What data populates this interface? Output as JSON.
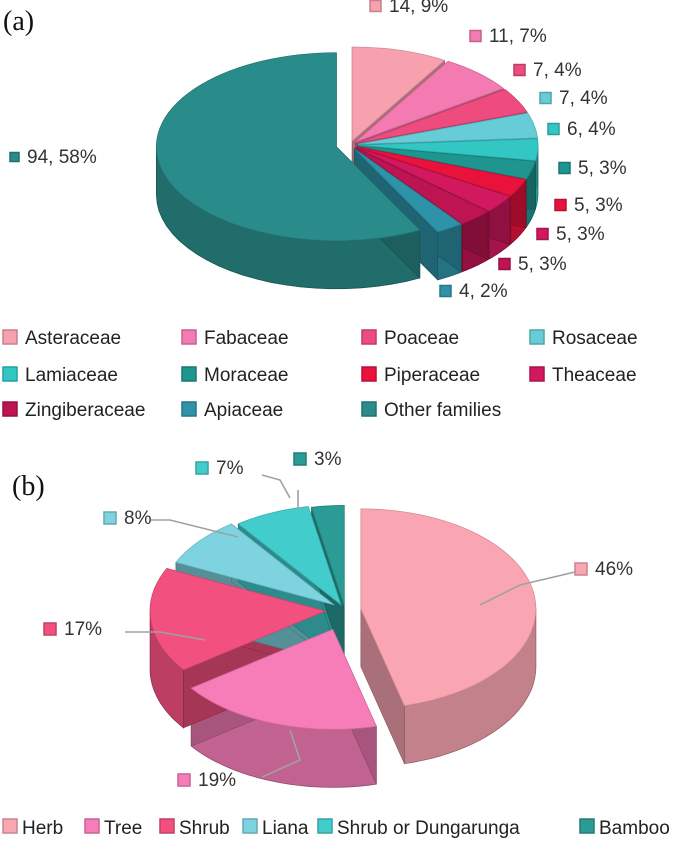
{
  "panel_a_label": "(a)",
  "panel_b_label": "(b)",
  "chart_data": [
    {
      "type": "pie",
      "panel": "(a)",
      "categories": [
        "Asteraceae",
        "Fabaceae",
        "Poaceae",
        "Rosaceae",
        "Lamiaceae",
        "Moraceae",
        "Piperaceae",
        "Theaceae",
        "Zingiberaceae",
        "Apiaceae",
        "Other families"
      ],
      "values": [
        14,
        11,
        7,
        7,
        6,
        5,
        5,
        5,
        5,
        4,
        94
      ],
      "percents": [
        9,
        7,
        4,
        4,
        4,
        3,
        3,
        3,
        3,
        2,
        58
      ],
      "data_labels": [
        "14, 9%",
        "11, 7%",
        "7, 4%",
        "7, 4%",
        "6, 4%",
        "5, 3%",
        "5, 3%",
        "5, 3%",
        "5, 3%",
        "4, 2%",
        "94, 58%"
      ],
      "colors": [
        "#F7A1AE",
        "#F47BB1",
        "#EE4B7F",
        "#66CCD6",
        "#33C7C4",
        "#1F958F",
        "#E8123C",
        "#D2185F",
        "#BE1451",
        "#2E93A8",
        "#2A8C8A"
      ],
      "legend_placement": "bottom"
    },
    {
      "type": "pie",
      "panel": "(b)",
      "categories": [
        "Herb",
        "Tree",
        "Shrub",
        "Liana",
        "Shrub or Dungarunga",
        "Bamboo"
      ],
      "values": [
        46,
        19,
        17,
        8,
        7,
        3
      ],
      "data_labels": [
        "46%",
        "19%",
        "17%",
        "8%",
        "7%",
        "3%"
      ],
      "colors": [
        "#FAA5B2",
        "#F77DB8",
        "#F2507F",
        "#7DD3E0",
        "#42CCCC",
        "#2A9B95"
      ],
      "legend_placement": "bottom"
    }
  ]
}
